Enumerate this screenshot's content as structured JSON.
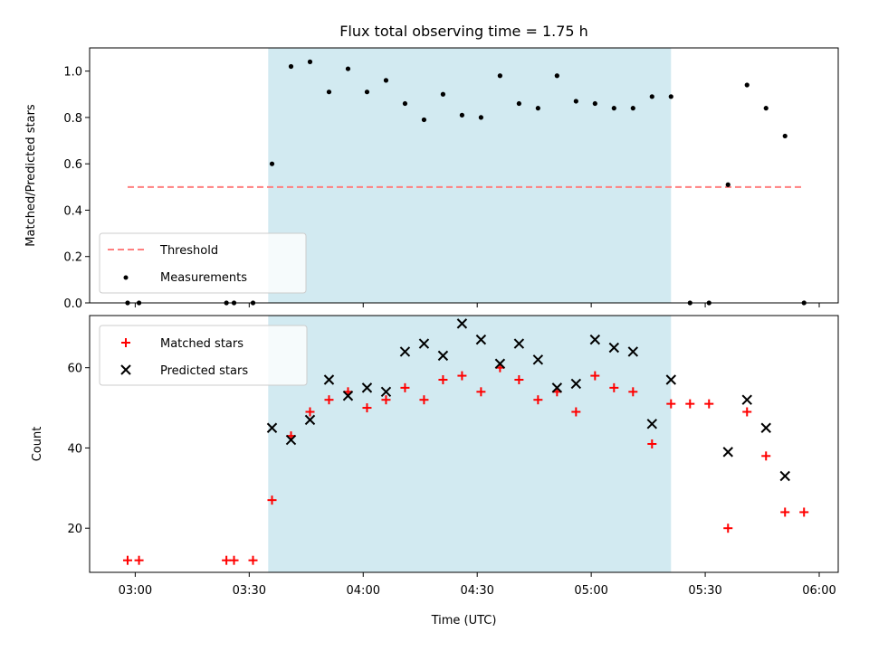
{
  "chart_data": [
    {
      "type": "scatter",
      "title": "Flux total observing time = 1.75 h",
      "xlabel": "",
      "ylabel": "Matched/Predicted stars",
      "ylim": [
        0,
        1.1
      ],
      "yticks": [
        "0.0",
        "0.2",
        "0.4",
        "0.6",
        "0.8",
        "1.0"
      ],
      "x_range": [
        "02:48",
        "06:05"
      ],
      "x_ticks": [
        "03:00",
        "03:30",
        "04:00",
        "04:30",
        "05:00",
        "05:30",
        "06:00"
      ],
      "shaded_interval": [
        "03:35",
        "05:21"
      ],
      "shade_color": "#add8e6",
      "legend_position": "lower-left",
      "threshold": {
        "name": "Threshold",
        "value": 0.5,
        "x": [
          "02:58",
          "05:56"
        ],
        "color": "#ff7f7f",
        "style": "dashed"
      },
      "series": [
        {
          "name": "Measurements",
          "color": "#000000",
          "marker": "dot",
          "points": [
            [
              "02:58",
              0.0
            ],
            [
              "03:01",
              0.0
            ],
            [
              "03:24",
              0.0
            ],
            [
              "03:26",
              0.0
            ],
            [
              "03:31",
              0.0
            ],
            [
              "03:36",
              0.6
            ],
            [
              "03:41",
              1.02
            ],
            [
              "03:46",
              1.04
            ],
            [
              "03:51",
              0.91
            ],
            [
              "03:56",
              1.01
            ],
            [
              "04:01",
              0.91
            ],
            [
              "04:06",
              0.96
            ],
            [
              "04:11",
              0.86
            ],
            [
              "04:16",
              0.79
            ],
            [
              "04:21",
              0.9
            ],
            [
              "04:26",
              0.81
            ],
            [
              "04:31",
              0.8
            ],
            [
              "04:36",
              0.98
            ],
            [
              "04:41",
              0.86
            ],
            [
              "04:46",
              0.84
            ],
            [
              "04:51",
              0.98
            ],
            [
              "04:56",
              0.87
            ],
            [
              "05:01",
              0.86
            ],
            [
              "05:06",
              0.84
            ],
            [
              "05:11",
              0.84
            ],
            [
              "05:16",
              0.89
            ],
            [
              "05:21",
              0.89
            ],
            [
              "05:26",
              0.0
            ],
            [
              "05:31",
              0.0
            ],
            [
              "05:36",
              0.51
            ],
            [
              "05:41",
              0.94
            ],
            [
              "05:46",
              0.84
            ],
            [
              "05:51",
              0.72
            ],
            [
              "05:56",
              0.0
            ]
          ]
        }
      ]
    },
    {
      "type": "scatter",
      "title": "",
      "xlabel": "Time (UTC)",
      "ylabel": "Count",
      "ylim": [
        9,
        73
      ],
      "yticks": [
        "20",
        "40",
        "60"
      ],
      "x_range": [
        "02:48",
        "06:05"
      ],
      "x_ticks": [
        "03:00",
        "03:30",
        "04:00",
        "04:30",
        "05:00",
        "05:30",
        "06:00"
      ],
      "shaded_interval": [
        "03:35",
        "05:21"
      ],
      "shade_color": "#add8e6",
      "legend_position": "upper-left",
      "series": [
        {
          "name": "Matched stars",
          "color": "#ff0000",
          "marker": "plus",
          "points": [
            [
              "02:58",
              12
            ],
            [
              "03:01",
              12
            ],
            [
              "03:24",
              12
            ],
            [
              "03:26",
              12
            ],
            [
              "03:31",
              12
            ],
            [
              "03:36",
              27
            ],
            [
              "03:41",
              43
            ],
            [
              "03:46",
              49
            ],
            [
              "03:51",
              52
            ],
            [
              "03:56",
              54
            ],
            [
              "04:01",
              50
            ],
            [
              "04:06",
              52
            ],
            [
              "04:11",
              55
            ],
            [
              "04:16",
              52
            ],
            [
              "04:21",
              57
            ],
            [
              "04:26",
              58
            ],
            [
              "04:31",
              54
            ],
            [
              "04:36",
              60
            ],
            [
              "04:41",
              57
            ],
            [
              "04:46",
              52
            ],
            [
              "04:51",
              54
            ],
            [
              "04:56",
              49
            ],
            [
              "05:01",
              58
            ],
            [
              "05:06",
              55
            ],
            [
              "05:11",
              54
            ],
            [
              "05:16",
              41
            ],
            [
              "05:21",
              51
            ],
            [
              "05:26",
              51
            ],
            [
              "05:31",
              51
            ],
            [
              "05:36",
              20
            ],
            [
              "05:41",
              49
            ],
            [
              "05:46",
              38
            ],
            [
              "05:51",
              24
            ],
            [
              "05:56",
              24
            ]
          ]
        },
        {
          "name": "Predicted stars",
          "color": "#000000",
          "marker": "x",
          "points": [
            [
              "03:36",
              45
            ],
            [
              "03:41",
              42
            ],
            [
              "03:46",
              47
            ],
            [
              "03:51",
              57
            ],
            [
              "03:56",
              53
            ],
            [
              "04:01",
              55
            ],
            [
              "04:06",
              54
            ],
            [
              "04:11",
              64
            ],
            [
              "04:16",
              66
            ],
            [
              "04:21",
              63
            ],
            [
              "04:26",
              71
            ],
            [
              "04:31",
              67
            ],
            [
              "04:36",
              61
            ],
            [
              "04:41",
              66
            ],
            [
              "04:46",
              62
            ],
            [
              "04:51",
              55
            ],
            [
              "04:56",
              56
            ],
            [
              "05:01",
              67
            ],
            [
              "05:06",
              65
            ],
            [
              "05:11",
              64
            ],
            [
              "05:16",
              46
            ],
            [
              "05:21",
              57
            ],
            [
              "05:36",
              39
            ],
            [
              "05:41",
              52
            ],
            [
              "05:46",
              45
            ],
            [
              "05:51",
              33
            ]
          ]
        }
      ]
    }
  ]
}
